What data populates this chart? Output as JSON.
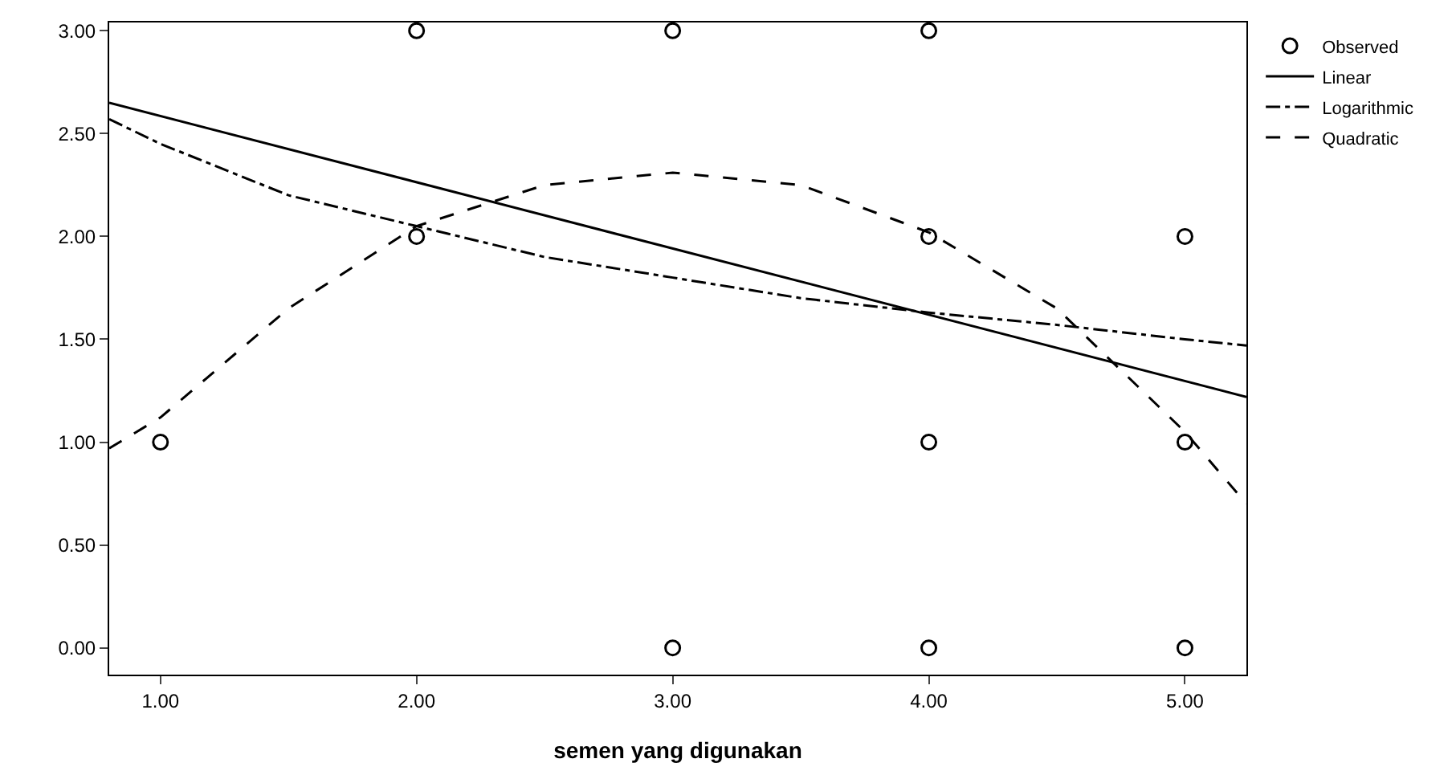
{
  "chart_data": {
    "type": "scatter",
    "xlabel": "semen yang digunakan",
    "xlim": [
      0.8,
      5.24
    ],
    "ylim": [
      -0.13,
      3.04
    ],
    "xticks": [
      {
        "value": 1,
        "label": "1.00"
      },
      {
        "value": 2,
        "label": "2.00"
      },
      {
        "value": 3,
        "label": "3.00"
      },
      {
        "value": 4,
        "label": "4.00"
      },
      {
        "value": 5,
        "label": "5.00"
      }
    ],
    "yticks": [
      {
        "value": 0,
        "label": "0.00"
      },
      {
        "value": 0.5,
        "label": "0.50"
      },
      {
        "value": 1,
        "label": "1.00"
      },
      {
        "value": 1.5,
        "label": "1.50"
      },
      {
        "value": 2,
        "label": "2.00"
      },
      {
        "value": 2.5,
        "label": "2.50"
      },
      {
        "value": 3,
        "label": "3.00"
      }
    ],
    "grid": false,
    "legend": "top right",
    "marker": "circle",
    "series": [
      {
        "name": "Observed",
        "type": "scatter",
        "color": "#000000",
        "x": [
          1,
          2,
          2,
          3,
          3,
          4,
          4,
          4,
          4,
          5,
          5,
          5
        ],
        "values": [
          1,
          3,
          2,
          3,
          0,
          3,
          2,
          1,
          0,
          2,
          1,
          0
        ]
      },
      {
        "name": "Linear",
        "type": "line",
        "color": "#000000",
        "line_style": "solid",
        "marker": "none",
        "x": [
          0.8,
          5.24
        ],
        "values": [
          2.65,
          1.22
        ]
      },
      {
        "name": "Logarithmic",
        "type": "line",
        "color": "#000000",
        "line_style": "dashdot",
        "marker": "none",
        "x": [
          0.8,
          1,
          1.5,
          2,
          2.5,
          3,
          3.5,
          4,
          4.5,
          5,
          5.24
        ],
        "values": [
          2.57,
          2.45,
          2.2,
          2.05,
          1.9,
          1.8,
          1.7,
          1.63,
          1.57,
          1.5,
          1.47
        ]
      },
      {
        "name": "Quadratic",
        "type": "line",
        "color": "#000000",
        "line_style": "dashed",
        "marker": "none",
        "x": [
          0.8,
          1,
          1.5,
          2,
          2.5,
          3,
          3.5,
          4,
          4.5,
          5,
          5.24
        ],
        "values": [
          0.97,
          1.12,
          1.65,
          2.05,
          2.25,
          2.31,
          2.25,
          2.02,
          1.65,
          1.05,
          0.7
        ]
      }
    ]
  }
}
